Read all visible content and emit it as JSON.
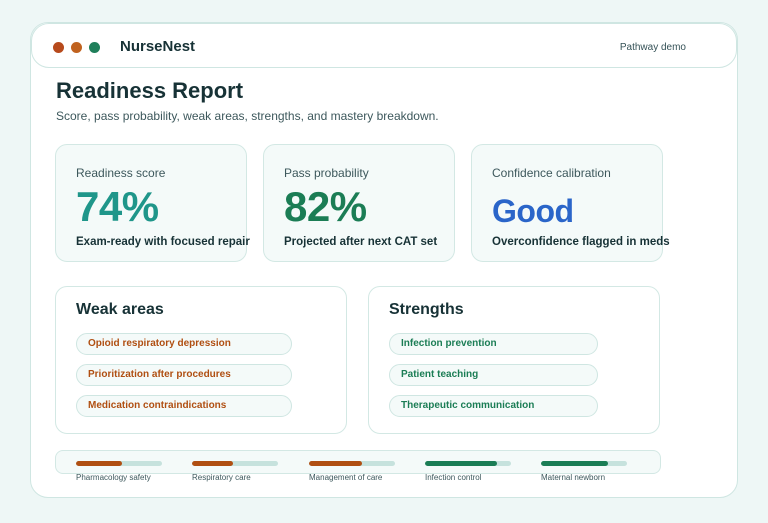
{
  "colors": {
    "dot_red": "#b74a1c",
    "dot_orange": "#c0621f",
    "dot_green": "#1f7f5a",
    "teal": "#1f968a",
    "green": "#1b7d55",
    "blue": "#2a65c9",
    "weak_text": "#b04f12",
    "strong_text": "#1b7d55"
  },
  "app": {
    "name": "NurseNest",
    "mode": "Pathway demo"
  },
  "page": {
    "title": "Readiness Report",
    "subtitle": "Score, pass probability, weak areas, strengths, and mastery breakdown."
  },
  "metrics": [
    {
      "label": "Readiness score",
      "value": "74%",
      "note": "Exam-ready with focused repair",
      "color": "#1f968a"
    },
    {
      "label": "Pass probability",
      "value": "82%",
      "note": "Projected after next CAT set",
      "color": "#1b7d55"
    },
    {
      "label": "Confidence calibration",
      "value": "Good",
      "note": "Overconfidence flagged in meds",
      "color": "#2a65c9"
    }
  ],
  "weak_areas": {
    "title": "Weak areas",
    "items": [
      "Opioid respiratory depression",
      "Prioritization after procedures",
      "Medication contraindications"
    ]
  },
  "strengths": {
    "title": "Strengths",
    "items": [
      "Infection prevention",
      "Patient teaching",
      "Therapeutic communication"
    ]
  },
  "mastery": [
    {
      "label": "Pharmacology safety",
      "level": 0.54,
      "color": "#b04f12"
    },
    {
      "label": "Respiratory care",
      "level": 0.48,
      "color": "#b04f12"
    },
    {
      "label": "Management of care",
      "level": 0.62,
      "color": "#b04f12"
    },
    {
      "label": "Infection control",
      "level": 0.84,
      "color": "#1b7d55"
    },
    {
      "label": "Maternal newborn",
      "level": 0.78,
      "color": "#1b7d55"
    }
  ]
}
